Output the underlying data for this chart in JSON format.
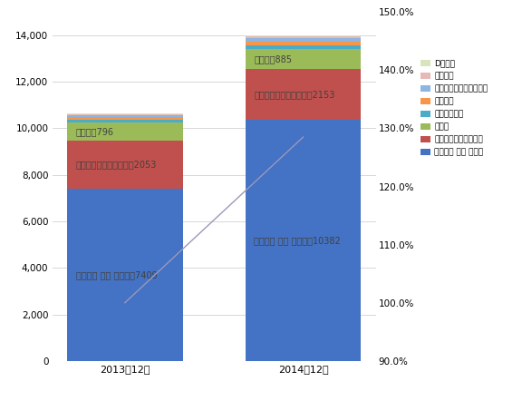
{
  "categories": [
    "2013年12月",
    "2014年12月"
  ],
  "series": [
    {
      "name": "タイムズ カー プラス",
      "values": [
        7409,
        10382
      ],
      "color": "#4472C4"
    },
    {
      "name": "オリックスカーシェア",
      "values": [
        2053,
        2153
      ],
      "color": "#C0504D"
    },
    {
      "name": "カレコ",
      "values": [
        796,
        885
      ],
      "color": "#9BBB59"
    },
    {
      "name": "アース・カー",
      "values": [
        120,
        150
      ],
      "color": "#4BACC6"
    },
    {
      "name": "カリテコ",
      "values": [
        90,
        160
      ],
      "color": "#F79646"
    },
    {
      "name": "カーシェアリング・ワン",
      "values": [
        80,
        130
      ],
      "color": "#8DB4E2"
    },
    {
      "name": "エコロカ",
      "values": [
        50,
        80
      ],
      "color": "#E6B9B8"
    },
    {
      "name": "Dシェア",
      "values": [
        30,
        60
      ],
      "color": "#D8E4BC"
    }
  ],
  "bar_labels": [
    {
      "series_idx": 0,
      "bar_idx": 0,
      "text": "タイムズ カー プラス，7409",
      "color": "#404040"
    },
    {
      "series_idx": 0,
      "bar_idx": 1,
      "text": "タイムズ カー プラス，10382",
      "color": "#404040"
    },
    {
      "series_idx": 1,
      "bar_idx": 0,
      "text": "オリックスカーシェア，2053",
      "color": "#404040"
    },
    {
      "series_idx": 1,
      "bar_idx": 1,
      "text": "オリックスカーシェア，2153",
      "color": "#404040"
    },
    {
      "series_idx": 2,
      "bar_idx": 0,
      "text": "カレコ，796",
      "color": "#404040"
    },
    {
      "series_idx": 2,
      "bar_idx": 1,
      "text": "カレコ，885",
      "color": "#404040"
    }
  ],
  "line_values": [
    100.0,
    128.5
  ],
  "line_color": "#9999BB",
  "ylim_left": [
    0,
    15000
  ],
  "ylim_right": [
    90.0,
    150.0
  ],
  "yticks_left": [
    0,
    2000,
    4000,
    6000,
    8000,
    10000,
    12000,
    14000
  ],
  "yticks_right": [
    90.0,
    100.0,
    110.0,
    120.0,
    130.0,
    140.0,
    150.0
  ],
  "background_color": "#FFFFFF",
  "grid_color": "#C8C8C8",
  "bar_width": 0.65,
  "legend_items_ordered": [
    "Dシェア",
    "エコロカ",
    "カーシェアリング・ワン",
    "カリテコ",
    "アース・カー",
    "カレコ",
    "オリックスカーシェア",
    "タイムズ カー プラス"
  ]
}
